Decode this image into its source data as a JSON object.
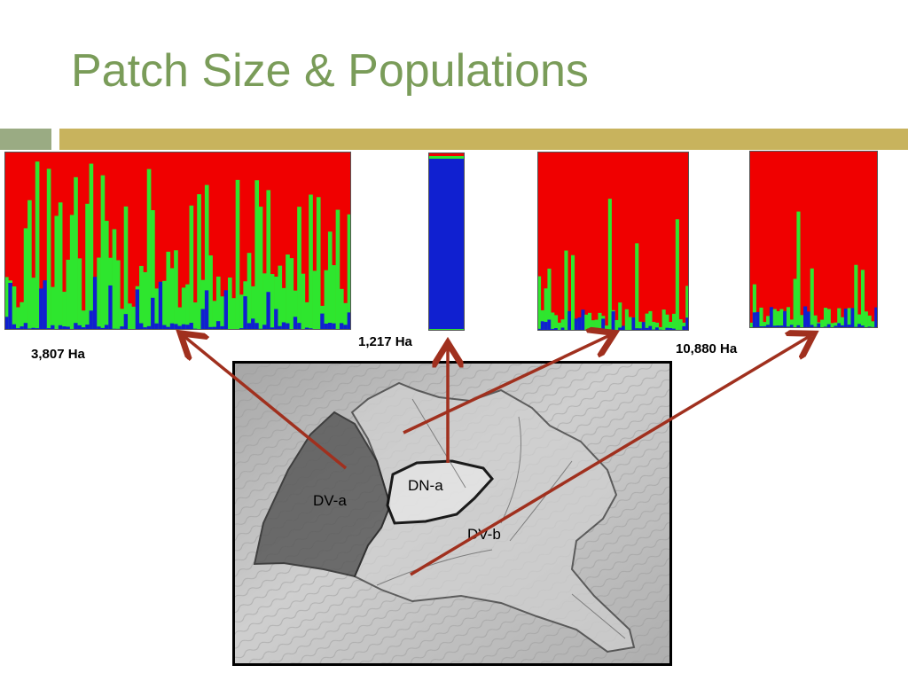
{
  "slide": {
    "title": "Patch Size & Populations",
    "title_color": "#7a9c59",
    "rule_left_color": "#9aab83",
    "rule_right_color": "#c8b35d"
  },
  "plots": [
    {
      "area_label": "3,807 Ha"
    },
    {
      "area_label": "1,217 Ha"
    },
    {
      "area_label": ""
    },
    {
      "area_label": "10,880 Ha"
    }
  ],
  "map": {
    "regions": [
      {
        "label": "DV-a"
      },
      {
        "label": "DN-a"
      },
      {
        "label": "DV-b"
      }
    ]
  },
  "colors": {
    "cluster_red": "#f00000",
    "cluster_green": "#2ee62e",
    "cluster_blue": "#1020d0",
    "arrow": "#a0301e"
  }
}
